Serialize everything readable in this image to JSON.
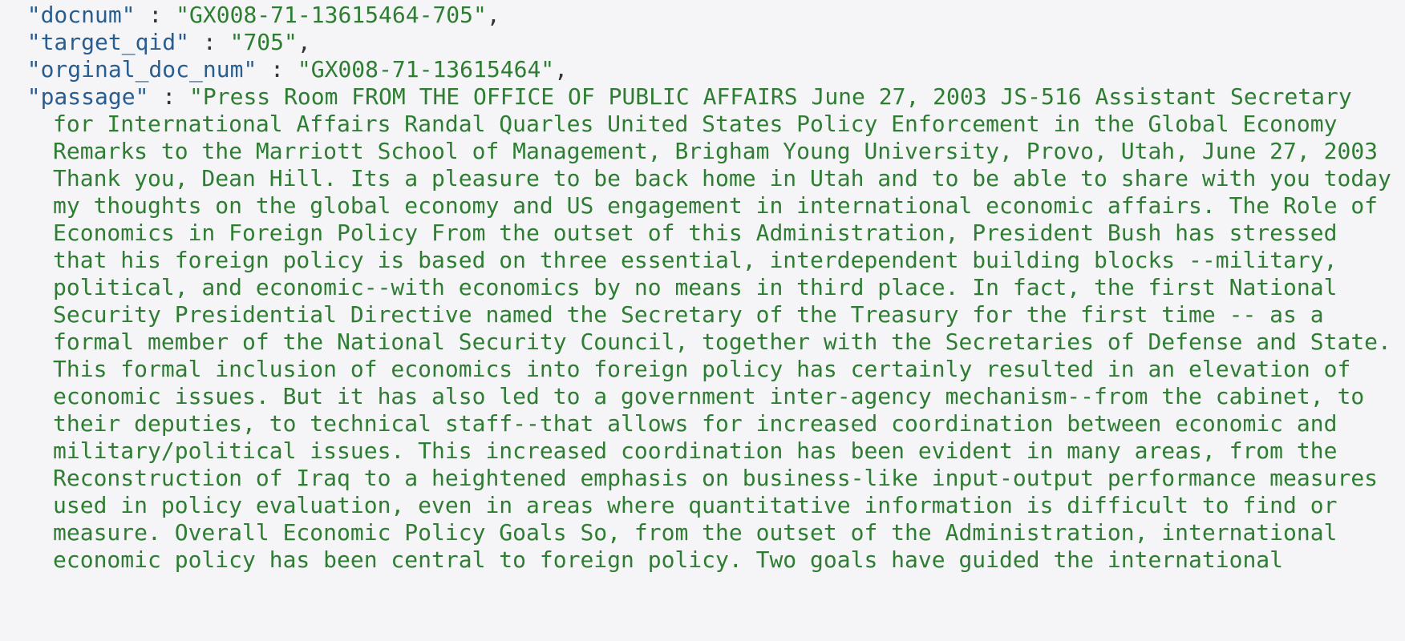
{
  "json_view": {
    "fields": [
      {
        "key": "\"docnum\"",
        "value": "\"GX008-71-13615464-705\"",
        "suffix": ","
      },
      {
        "key": "\"target_qid\"",
        "value": "\"705\"",
        "suffix": ","
      },
      {
        "key": "\"orginal_doc_num\"",
        "value": "\"GX008-71-13615464\"",
        "suffix": ","
      }
    ],
    "passage": {
      "key": "\"passage\"",
      "first_line": "\"Press Room FROM THE OFFICE OF PUBLIC AFFAIRS June 27, 2003 JS-516 Assistant Secretary",
      "lines": [
        "for International Affairs Randal Quarles United States Policy Enforcement in the Global Economy",
        "Remarks to the Marriott School of Management, Brigham Young University, Provo, Utah, June 27, 2003",
        "Thank you, Dean Hill. Its a pleasure to be back home in Utah and to be able to share with you today",
        "my thoughts on the global economy and US engagement in international economic affairs. The Role of",
        "Economics in Foreign Policy From the outset of this Administration, President Bush has stressed",
        "that his foreign policy is based on three essential, interdependent building blocks --military,",
        "political, and economic--with economics by no means in third place. In fact, the first National",
        "Security Presidential Directive named the Secretary of the Treasury for the first time -- as a",
        "formal member of the National Security Council, together with the Secretaries of Defense and State.",
        "This formal inclusion of economics into foreign policy has certainly resulted in an elevation of",
        "economic issues. But it has also led to a government inter-agency mechanism--from the cabinet, to",
        "their deputies, to technical staff--that allows for increased coordination between economic and",
        "military/political issues. This increased coordination has been evident in many areas, from the",
        "Reconstruction of Iraq to a heightened emphasis on business-like input-output performance measures",
        "used in policy evaluation, even in areas where quantitative information is difficult to find or",
        "measure. Overall Economic Policy Goals So, from the outset of the Administration, international",
        "economic policy has been central to foreign policy. Two goals have guided the international"
      ]
    },
    "separator": " : ",
    "colors": {
      "background": "#f5f5f7",
      "key": "#2a5d8f",
      "string": "#2e7d32",
      "punctuation": "#333333"
    }
  }
}
